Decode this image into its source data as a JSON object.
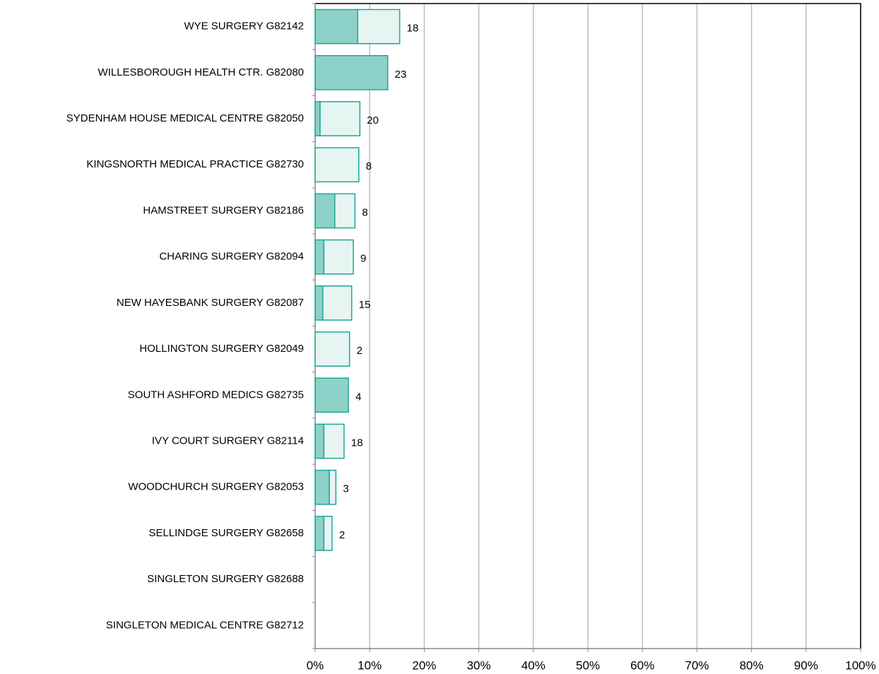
{
  "chart_data": {
    "type": "stacked-bar-horizontal",
    "categories": [
      "WYE SURGERY G82142",
      "WILLESBOROUGH HEALTH CTR. G82080",
      "SYDENHAM HOUSE MEDICAL CENTRE G82050",
      "KINGSNORTH MEDICAL PRACTICE G82730",
      "HAMSTREET SURGERY G82186",
      "CHARING SURGERY G82094",
      "NEW HAYESBANK SURGERY G82087",
      "HOLLINGTON SURGERY G82049",
      "SOUTH ASHFORD MEDICS G82735",
      "IVY COURT SURGERY G82114",
      "WOODCHURCH SURGERY G82053",
      "SELLINDGE SURGERY G82658",
      "SINGLETON SURGERY G82688",
      "SINGLETON MEDICAL CENTRE G82712"
    ],
    "series": [
      {
        "color": "#8ed1c9",
        "values": [
          7.8,
          13.3,
          0.9,
          0,
          3.6,
          1.6,
          1.4,
          0,
          6.1,
          1.6,
          2.6,
          1.6,
          0,
          0
        ]
      },
      {
        "color": "#e6f4f2",
        "values": [
          7.7,
          0,
          7.3,
          8.0,
          3.7,
          5.4,
          5.3,
          6.3,
          0,
          3.7,
          1.2,
          1.5,
          0,
          0
        ]
      }
    ],
    "counts": [
      18,
      23,
      20,
      8,
      8,
      9,
      15,
      2,
      4,
      18,
      3,
      2,
      null,
      null
    ],
    "xlim": [
      0,
      100
    ],
    "xticks": [
      {
        "value": 0,
        "label": "0%"
      },
      {
        "value": 10,
        "label": "10%"
      },
      {
        "value": 20,
        "label": "20%"
      },
      {
        "value": 30,
        "label": "30%"
      },
      {
        "value": 40,
        "label": "40%"
      },
      {
        "value": 50,
        "label": "50%"
      },
      {
        "value": 60,
        "label": "60%"
      },
      {
        "value": 70,
        "label": "70%"
      },
      {
        "value": 80,
        "label": "80%"
      },
      {
        "value": 90,
        "label": "90%"
      },
      {
        "value": 100,
        "label": "100%"
      }
    ],
    "grid": true
  }
}
